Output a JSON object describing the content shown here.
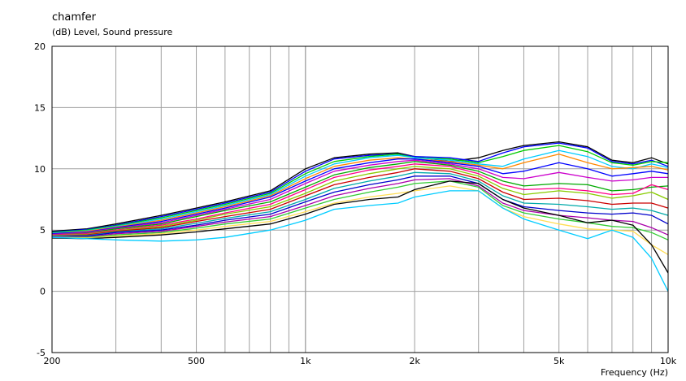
{
  "chart_data": {
    "type": "line",
    "title": "chamfer",
    "subtitle": "(dB)  Level, Sound pressure",
    "xlabel": "Frequency  (Hz)",
    "ylabel": "",
    "xscale": "log",
    "xlim": [
      200,
      10000
    ],
    "ylim": [
      -5,
      20
    ],
    "grid": true,
    "legend": "none",
    "xticks": [
      {
        "value": 200,
        "label": "200"
      },
      {
        "value": 500,
        "label": "500"
      },
      {
        "value": 1000,
        "label": "1k"
      },
      {
        "value": 2000,
        "label": "2k"
      },
      {
        "value": 5000,
        "label": "5k"
      },
      {
        "value": 10000,
        "label": "10k"
      }
    ],
    "yticks": [
      {
        "value": -5,
        "label": "-5"
      },
      {
        "value": 0,
        "label": "0"
      },
      {
        "value": 5,
        "label": "5"
      },
      {
        "value": 10,
        "label": "10"
      },
      {
        "value": 15,
        "label": "15"
      },
      {
        "value": 20,
        "label": "20"
      }
    ],
    "x": [
      200,
      250,
      300,
      400,
      500,
      600,
      800,
      1000,
      1200,
      1500,
      1800,
      2000,
      2500,
      3000,
      3500,
      4000,
      5000,
      6000,
      7000,
      8000,
      9000,
      10000
    ],
    "series": [
      {
        "color": "#000000",
        "values": [
          4.9,
          5.1,
          5.5,
          6.2,
          6.8,
          7.3,
          8.2,
          10.0,
          10.9,
          11.2,
          11.3,
          11.0,
          10.6,
          10.9,
          11.5,
          11.9,
          12.2,
          11.8,
          10.7,
          10.5,
          10.9,
          10.4
        ]
      },
      {
        "color": "#0000ff",
        "values": [
          4.85,
          5.05,
          5.4,
          6.1,
          6.7,
          7.2,
          8.1,
          9.8,
          10.8,
          11.1,
          11.2,
          11.0,
          10.9,
          10.6,
          11.3,
          11.8,
          12.1,
          11.7,
          10.6,
          10.4,
          10.7,
          10.2
        ]
      },
      {
        "color": "#00cc00",
        "values": [
          4.8,
          5.0,
          5.35,
          6.0,
          6.6,
          7.1,
          8.0,
          9.6,
          10.6,
          11.0,
          11.2,
          10.9,
          10.8,
          10.5,
          11.0,
          11.5,
          11.9,
          11.4,
          10.5,
          10.3,
          10.6,
          10.5
        ]
      },
      {
        "color": "#00ccff",
        "values": [
          4.75,
          4.95,
          5.3,
          5.9,
          6.5,
          7.0,
          7.9,
          9.4,
          10.4,
          10.9,
          11.1,
          10.9,
          10.7,
          10.4,
          10.2,
          10.8,
          11.5,
          11.0,
          10.2,
          10.0,
          10.4,
          10.1
        ]
      },
      {
        "color": "#ff8800",
        "values": [
          4.7,
          4.9,
          5.25,
          5.8,
          6.4,
          6.9,
          7.8,
          9.2,
          10.2,
          10.7,
          10.9,
          10.8,
          10.6,
          10.3,
          10.0,
          10.5,
          11.2,
          10.5,
          10.0,
          10.1,
          10.2,
          9.9
        ]
      },
      {
        "color": "#0000ff",
        "values": [
          4.7,
          4.85,
          5.2,
          5.7,
          6.3,
          6.8,
          7.7,
          9.0,
          10.0,
          10.5,
          10.8,
          10.8,
          10.5,
          10.2,
          9.6,
          9.8,
          10.5,
          10.0,
          9.4,
          9.6,
          9.8,
          9.6
        ]
      },
      {
        "color": "#cc00cc",
        "values": [
          4.65,
          4.8,
          5.15,
          5.6,
          6.2,
          6.7,
          7.5,
          8.8,
          9.8,
          10.3,
          10.6,
          10.7,
          10.4,
          10.0,
          9.3,
          9.2,
          9.7,
          9.3,
          9.0,
          9.1,
          9.3,
          9.3
        ]
      },
      {
        "color": "#00aa00",
        "values": [
          4.6,
          4.75,
          5.1,
          5.5,
          6.1,
          6.6,
          7.3,
          8.5,
          9.5,
          10.1,
          10.4,
          10.6,
          10.3,
          9.8,
          9.0,
          8.6,
          8.8,
          8.7,
          8.2,
          8.3,
          8.5,
          8.6
        ]
      },
      {
        "color": "#ff0088",
        "values": [
          4.6,
          4.7,
          5.0,
          5.4,
          5.9,
          6.4,
          7.1,
          8.3,
          9.3,
          9.9,
          10.2,
          10.4,
          10.2,
          9.6,
          8.7,
          8.3,
          8.4,
          8.2,
          7.9,
          8.0,
          8.7,
          8.3
        ]
      },
      {
        "color": "#88cc00",
        "values": [
          4.55,
          4.65,
          4.95,
          5.3,
          5.8,
          6.3,
          6.9,
          8.0,
          9.0,
          9.6,
          10.0,
          10.2,
          10.0,
          9.4,
          8.4,
          7.9,
          8.2,
          8.0,
          7.6,
          7.8,
          8.1,
          7.5
        ]
      },
      {
        "color": "#cc0000",
        "values": [
          4.5,
          4.6,
          4.9,
          5.2,
          5.7,
          6.1,
          6.7,
          7.8,
          8.7,
          9.3,
          9.7,
          10.0,
          9.8,
          9.2,
          8.1,
          7.5,
          7.6,
          7.4,
          7.1,
          7.2,
          7.2,
          6.8
        ]
      },
      {
        "color": "#00aaaa",
        "values": [
          4.5,
          4.55,
          4.85,
          5.1,
          5.55,
          5.95,
          6.5,
          7.5,
          8.4,
          9.0,
          9.4,
          9.7,
          9.6,
          9.0,
          7.8,
          7.2,
          7.1,
          6.9,
          6.7,
          6.8,
          6.6,
          6.2
        ]
      },
      {
        "color": "#0000cc",
        "values": [
          4.45,
          4.5,
          4.8,
          5.0,
          5.4,
          5.8,
          6.3,
          7.3,
          8.1,
          8.7,
          9.1,
          9.4,
          9.4,
          8.8,
          7.5,
          6.9,
          6.6,
          6.4,
          6.3,
          6.4,
          6.2,
          5.5
        ]
      },
      {
        "color": "#aa00aa",
        "values": [
          4.45,
          4.45,
          4.7,
          4.9,
          5.3,
          5.65,
          6.1,
          7.0,
          7.8,
          8.4,
          8.8,
          9.1,
          9.2,
          8.6,
          7.2,
          6.6,
          6.2,
          6.0,
          5.8,
          5.7,
          5.2,
          4.6
        ]
      },
      {
        "color": "#33cc33",
        "values": [
          4.4,
          4.4,
          4.6,
          4.8,
          5.15,
          5.5,
          5.9,
          6.8,
          7.5,
          8.1,
          8.5,
          8.8,
          9.0,
          8.5,
          7.0,
          6.4,
          5.9,
          5.6,
          5.3,
          5.2,
          4.8,
          4.2
        ]
      },
      {
        "color": "#ffdd55",
        "values": [
          4.4,
          4.35,
          4.5,
          4.7,
          5.0,
          5.3,
          5.7,
          6.5,
          7.2,
          7.7,
          8.0,
          8.2,
          8.6,
          8.2,
          6.8,
          6.1,
          5.5,
          5.1,
          5.0,
          4.9,
          3.8,
          3.0
        ]
      },
      {
        "color": "#000000",
        "values": [
          4.35,
          4.3,
          4.4,
          4.6,
          4.85,
          5.1,
          5.5,
          6.3,
          7.1,
          7.5,
          7.7,
          8.3,
          9.0,
          8.8,
          7.5,
          6.8,
          6.2,
          5.6,
          5.8,
          5.4,
          3.8,
          1.5
        ]
      },
      {
        "color": "#00ccff",
        "values": [
          4.4,
          4.3,
          4.2,
          4.1,
          4.2,
          4.4,
          5.0,
          5.8,
          6.7,
          7.0,
          7.2,
          7.7,
          8.2,
          8.2,
          6.8,
          5.9,
          5.0,
          4.3,
          5.0,
          4.4,
          2.7,
          0.0
        ]
      }
    ]
  }
}
